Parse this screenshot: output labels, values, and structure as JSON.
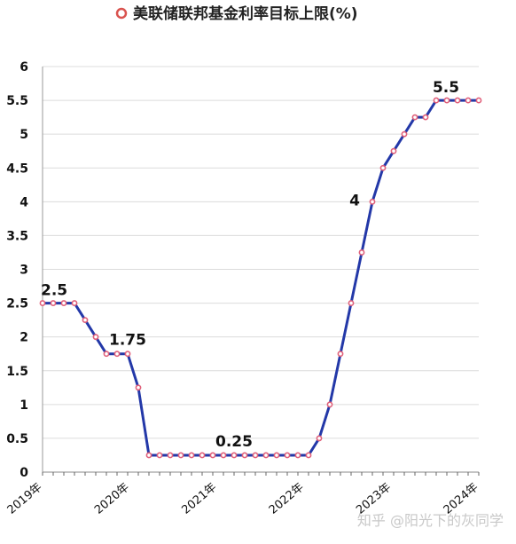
{
  "chart_data": {
    "type": "line",
    "title": "美联储联邦基金利率目标上限(%)",
    "legend": {
      "marker": "circle-outline",
      "position": "top-center"
    },
    "ylim": [
      0,
      6
    ],
    "yticks": [
      "0",
      "0.5",
      "1",
      "1.5",
      "2",
      "2.5",
      "3",
      "3.5",
      "4",
      "4.5",
      "5",
      "5.5",
      "6"
    ],
    "xticks": [
      "2019年",
      "2020年",
      "2021年",
      "2022年",
      "2023年",
      "2024年"
    ],
    "grid": true,
    "line_color": "#2338a8",
    "marker_color": "#e0607a",
    "values": [
      2.5,
      2.5,
      2.5,
      2.5,
      2.25,
      2.0,
      1.75,
      1.75,
      1.75,
      1.25,
      0.25,
      0.25,
      0.25,
      0.25,
      0.25,
      0.25,
      0.25,
      0.25,
      0.25,
      0.25,
      0.25,
      0.25,
      0.25,
      0.25,
      0.25,
      0.25,
      0.5,
      1.0,
      1.75,
      2.5,
      3.25,
      4.0,
      4.5,
      4.75,
      5.0,
      5.25,
      5.25,
      5.5,
      5.5,
      5.5,
      5.5,
      5.5
    ],
    "annotations": [
      {
        "text": "2.5",
        "index": 0
      },
      {
        "text": "1.75",
        "index": 8
      },
      {
        "text": "0.25",
        "index": 18
      },
      {
        "text": "4",
        "index": 31
      },
      {
        "text": "5.5",
        "index": 38
      }
    ]
  },
  "watermark": "知乎 @阳光下的灰同学"
}
